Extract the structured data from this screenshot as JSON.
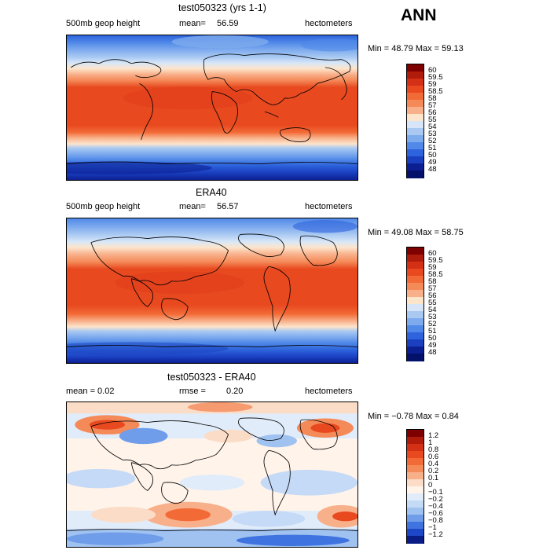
{
  "season": "ANN",
  "panels": [
    {
      "title": "test050323 (yrs 1-1)",
      "left_label": "500mb geop height",
      "mean_label": "mean=",
      "mean_value": "56.59",
      "units": "hectometers",
      "minmax": "Min =   48.79 Max =   59.13",
      "type": "field",
      "levels": [
        "60",
        "59.5",
        "59",
        "58.5",
        "58",
        "57",
        "56",
        "55",
        "54",
        "53",
        "52",
        "51",
        "50",
        "49",
        "48"
      ]
    },
    {
      "title": "ERA40",
      "left_label": "500mb geop height",
      "mean_label": "mean=",
      "mean_value": "56.57",
      "units": "hectometers",
      "minmax": "Min =   49.08 Max =   58.75",
      "type": "field",
      "levels": [
        "60",
        "59.5",
        "59",
        "58.5",
        "58",
        "57",
        "56",
        "55",
        "54",
        "53",
        "52",
        "51",
        "50",
        "49",
        "48"
      ]
    },
    {
      "title": "test050323 - ERA40",
      "left_label": "mean =    0.02",
      "mean_label": "rmse =",
      "mean_value": "0.20",
      "units": "hectometers",
      "minmax": "Min =  −0.78 Max =    0.84",
      "type": "diff",
      "levels": [
        "1.2",
        "1",
        "0.8",
        "0.6",
        "0.4",
        "0.2",
        "0.1",
        "0",
        "−0.1",
        "−0.2",
        "−0.4",
        "−0.6",
        "−0.8",
        "−1",
        "−1.2"
      ]
    }
  ],
  "colors": {
    "field": [
      "#7f0000",
      "#b01c0c",
      "#d33016",
      "#e8491f",
      "#f26a36",
      "#f58a59",
      "#f8b08a",
      "#fde5cc",
      "#d6e6f8",
      "#a9c9f2",
      "#7eabee",
      "#5089e8",
      "#2d63dd",
      "#1a3fc0",
      "#0c1f92",
      "#04116a"
    ],
    "diff": [
      "#7f0000",
      "#b01c0c",
      "#d33016",
      "#e8491f",
      "#f26a36",
      "#f58a59",
      "#f8b08a",
      "#fbdcc6",
      "#fff3ea",
      "#e1ecfa",
      "#c5daf6",
      "#a0c2f0",
      "#6f9de9",
      "#3f74e0",
      "#1d47c6",
      "#0a1c86"
    ]
  }
}
